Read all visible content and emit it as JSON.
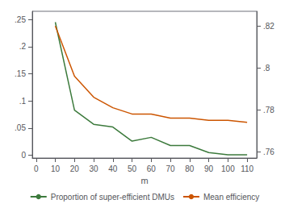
{
  "chart_data": {
    "type": "line",
    "x": [
      10,
      20,
      30,
      40,
      50,
      60,
      70,
      80,
      90,
      100,
      110
    ],
    "xlabel": "m",
    "xlim": [
      -2,
      115
    ],
    "xticks": [
      0,
      10,
      20,
      30,
      40,
      50,
      60,
      70,
      80,
      90,
      100,
      110
    ],
    "ylim": [
      -0.005,
      0.265
    ],
    "yticks": [
      0,
      {
        "value": 0.05,
        "label": ".05"
      },
      {
        "value": 0.1,
        "label": ".1"
      },
      {
        "value": 0.15,
        "label": ".15"
      },
      {
        "value": 0.2,
        "label": ".2"
      },
      {
        "value": 0.25,
        "label": ".25"
      }
    ],
    "y2lim": [
      0.757,
      0.827
    ],
    "y2ticks": [
      {
        "value": 0.76,
        "label": ".76"
      },
      {
        "value": 0.78,
        "label": ".78"
      },
      {
        "value": 0.8,
        "label": ".8"
      },
      {
        "value": 0.82,
        "label": ".82"
      }
    ],
    "grid": false,
    "legend": "bottom",
    "series": [
      {
        "name": "Proportion of super-efficient DMUs",
        "color": "#3c7a3c",
        "values": [
          0.245,
          0.083,
          0.057,
          0.052,
          0.026,
          0.033,
          0.018,
          0.018,
          0.005,
          0.001,
          0.001
        ]
      },
      {
        "name": "Mean efficiency",
        "color": "#cc5500",
        "axis": "y2",
        "values": [
          0.82,
          0.796,
          0.786,
          0.781,
          0.778,
          0.778,
          0.776,
          0.776,
          0.775,
          0.775,
          0.774
        ]
      }
    ]
  }
}
